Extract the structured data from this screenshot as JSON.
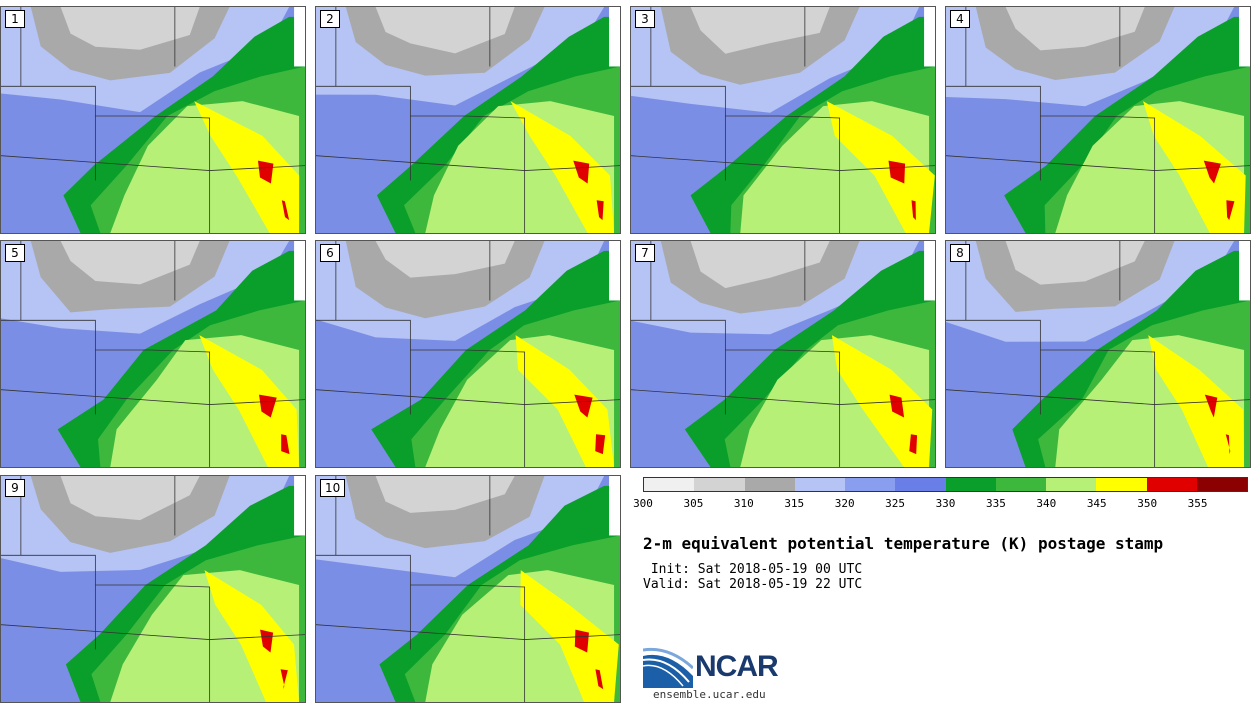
{
  "panels": [
    "1",
    "2",
    "3",
    "4",
    "5",
    "6",
    "7",
    "8",
    "9",
    "10"
  ],
  "colorbar": {
    "colors": [
      "#f0f0f0",
      "#d3d3d3",
      "#a9a9a9",
      "#b5c3f5",
      "#8a9ef0",
      "#6a7ee8",
      "#0a9f2a",
      "#3db83d",
      "#b6f076",
      "#ffff00",
      "#e00000",
      "#8b0000"
    ],
    "ticks": [
      "300",
      "305",
      "310",
      "315",
      "320",
      "325",
      "330",
      "335",
      "340",
      "345",
      "350",
      "355"
    ]
  },
  "title": "2-m equivalent potential temperature (K) postage stamp",
  "init_line": " Init: Sat 2018-05-19 00 UTC",
  "valid_line": "Valid: Sat 2018-05-19 22 UTC",
  "logo": {
    "text": "NCAR",
    "icon": "ncar-logo-icon",
    "color": "#1a3a6e"
  },
  "site": "ensemble.ucar.edu",
  "map_colors": {
    "background": "#7b8ee6",
    "light_blue": "#b5c3f5",
    "gray": "#a9a9a9",
    "light_gray": "#d3d3d3",
    "dark_green": "#0a9f2a",
    "green": "#3db83d",
    "light_green": "#b6f076",
    "yellow": "#ffff00",
    "red": "#e00000"
  }
}
